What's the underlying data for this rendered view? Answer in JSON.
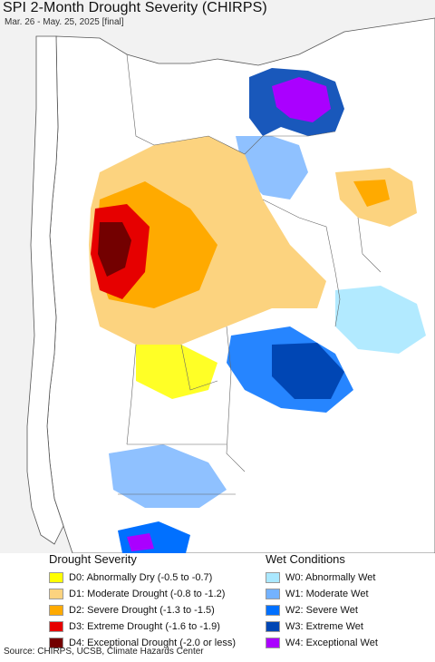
{
  "header": {
    "title": "SPI 2-Month Drought Severity (CHIRPS)",
    "subtitle": "Mar. 26 - May. 25, 2025 [final]"
  },
  "legend": {
    "drought": {
      "heading": "Drought Severity",
      "items": [
        {
          "label": "D0: Abnormally Dry (-0.5 to -0.7)",
          "color": "#ffff00"
        },
        {
          "label": "D1: Moderate Drought (-0.8 to -1.2)",
          "color": "#fcd37f"
        },
        {
          "label": "D2: Severe Drought (-1.3 to -1.5)",
          "color": "#ffaa00"
        },
        {
          "label": "D3: Extreme Drought (-1.6 to -1.9)",
          "color": "#e60000"
        },
        {
          "label": "D4: Exceptional Drought (-2.0 or less)",
          "color": "#730000"
        }
      ]
    },
    "wet": {
      "heading": "Wet Conditions",
      "items": [
        {
          "label": "W0: Abnormally Wet",
          "color": "#aae8ff"
        },
        {
          "label": "W1: Moderate Wet",
          "color": "#73b2ff"
        },
        {
          "label": "W2: Severe Wet",
          "color": "#0070ff"
        },
        {
          "label": "W3: Extreme Wet",
          "color": "#0046b4"
        },
        {
          "label": "W4: Exceptional Wet",
          "color": "#aa00ff"
        }
      ]
    }
  },
  "footer": {
    "source": "Source: CHIRPS, UCSB, Climate Hazards Center"
  }
}
